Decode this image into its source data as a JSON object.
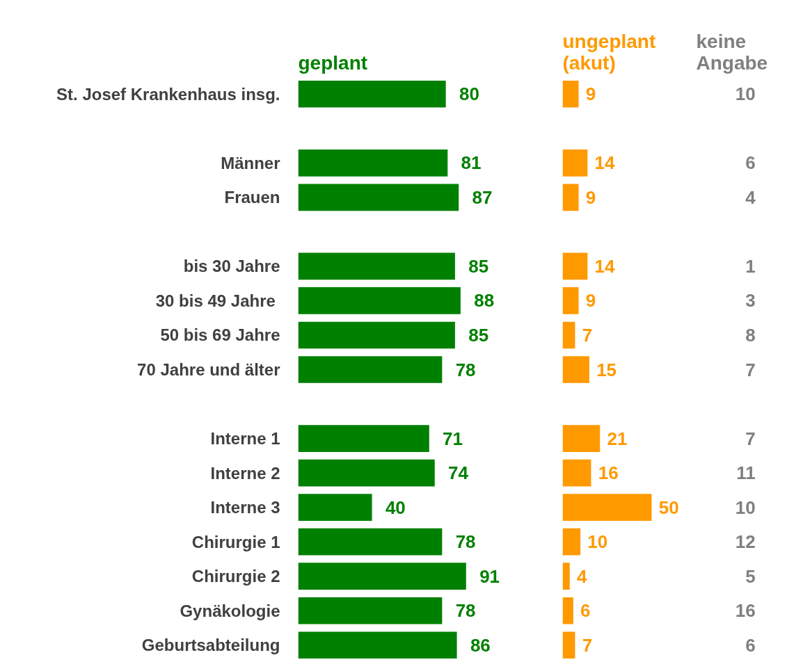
{
  "chart_data": [
    {
      "type": "bar",
      "orientation": "horizontal",
      "title": "geplant",
      "color": "#008000",
      "data_labels": true,
      "categories": [
        "St. Josef Krankenhaus insg.",
        null,
        "Männer",
        "Frauen",
        null,
        "bis 30 Jahre",
        "30 bis  49 Jahre",
        "50 bis 69 Jahre",
        "70 Jahre und älter",
        null,
        "Interne 1",
        "Interne 2",
        "Interne 3",
        "Chirurgie 1",
        "Chirurgie 2",
        "Gynäkologie",
        "Geburtsabteilung"
      ],
      "values": [
        80,
        null,
        81,
        87,
        null,
        85,
        88,
        85,
        78,
        null,
        71,
        74,
        40,
        78,
        91,
        78,
        86
      ],
      "grid": false
    },
    {
      "type": "bar",
      "orientation": "horizontal",
      "title": "ungeplant (akut)",
      "color": "#ff9900",
      "data_labels": true,
      "values": [
        9,
        null,
        14,
        9,
        null,
        14,
        9,
        7,
        15,
        null,
        21,
        16,
        50,
        10,
        4,
        6,
        7
      ],
      "grid": false
    },
    {
      "type": "other",
      "title": "keine Angabe",
      "color": "#808080",
      "data_labels": true,
      "values": [
        10,
        null,
        6,
        4,
        null,
        1,
        3,
        8,
        7,
        null,
        7,
        11,
        10,
        12,
        5,
        16,
        6
      ]
    }
  ]
}
